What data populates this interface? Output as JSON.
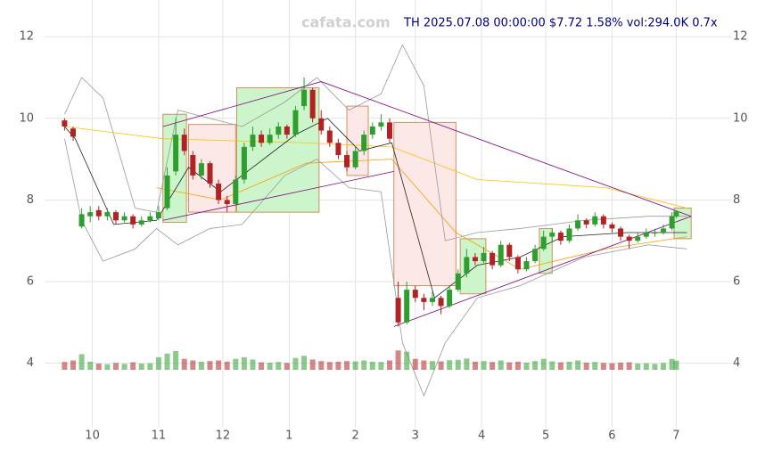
{
  "chart_data": {
    "type": "candlestick",
    "title": "TH 2025.07.08 00:00:00 $7.72 1.58% vol:294.0K 0.7x",
    "watermark": "cafata.com",
    "xlim": [
      -14,
      282
    ],
    "ylim": [
      2.2,
      12.9
    ],
    "xticks": [
      {
        "value": 0,
        "label": "10"
      },
      {
        "value": 31,
        "label": "11"
      },
      {
        "value": 61,
        "label": "12"
      },
      {
        "value": 92,
        "label": "1"
      },
      {
        "value": 123,
        "label": "2"
      },
      {
        "value": 151,
        "label": "3"
      },
      {
        "value": 182,
        "label": "4"
      },
      {
        "value": 212,
        "label": "5"
      },
      {
        "value": 243,
        "label": "6"
      },
      {
        "value": 273,
        "label": "7"
      }
    ],
    "yticks": [
      4,
      6,
      8,
      10,
      12
    ],
    "grid": true,
    "up_color": "#2e9e2e",
    "down_color": "#b22222",
    "x": [
      -13,
      -9,
      -5,
      -1,
      3,
      7,
      11,
      15,
      19,
      23,
      27,
      31,
      35,
      39,
      43,
      47,
      51,
      55,
      59,
      63,
      67,
      71,
      75,
      79,
      83,
      87,
      91,
      95,
      99,
      103,
      107,
      111,
      115,
      119,
      123,
      127,
      131,
      135,
      139,
      143,
      147,
      151,
      155,
      159,
      163,
      167,
      171,
      175,
      179,
      183,
      187,
      191,
      195,
      199,
      203,
      207,
      211,
      215,
      219,
      223,
      227,
      231,
      235,
      239,
      243,
      247,
      251,
      255,
      259,
      263,
      267,
      271,
      273
    ],
    "open": [
      9.95,
      9.75,
      7.35,
      7.6,
      7.75,
      7.6,
      7.7,
      7.5,
      7.6,
      7.4,
      7.5,
      7.55,
      7.8,
      8.7,
      9.6,
      9.1,
      8.6,
      8.9,
      8.4,
      8.0,
      7.9,
      8.5,
      9.3,
      9.6,
      9.4,
      9.6,
      9.8,
      9.6,
      10.3,
      10.7,
      10.0,
      9.7,
      9.4,
      9.1,
      8.8,
      9.2,
      9.6,
      9.8,
      9.9,
      5.6,
      5.0,
      5.8,
      5.6,
      5.5,
      5.6,
      5.4,
      5.8,
      6.2,
      6.6,
      6.5,
      6.7,
      6.4,
      6.9,
      6.6,
      6.3,
      6.5,
      6.8,
      7.1,
      7.2,
      7.0,
      7.3,
      7.5,
      7.4,
      7.6,
      7.4,
      7.3,
      7.1,
      7.0,
      7.1,
      7.2,
      7.2,
      7.3,
      7.6
    ],
    "high": [
      10.0,
      9.8,
      7.8,
      7.85,
      7.85,
      7.8,
      7.75,
      7.7,
      7.65,
      7.6,
      7.7,
      7.85,
      8.8,
      10.0,
      9.75,
      9.2,
      9.0,
      8.95,
      8.5,
      8.1,
      8.6,
      9.4,
      9.8,
      9.7,
      9.75,
      9.9,
      9.85,
      10.3,
      11.0,
      10.75,
      10.2,
      9.8,
      9.5,
      9.2,
      9.3,
      9.7,
      9.9,
      10.1,
      10.0,
      6.0,
      6.0,
      5.9,
      5.7,
      5.75,
      5.65,
      5.9,
      6.3,
      6.8,
      6.7,
      6.85,
      6.75,
      7.0,
      6.95,
      6.65,
      6.6,
      6.9,
      7.25,
      7.3,
      7.25,
      7.4,
      7.65,
      7.55,
      7.7,
      7.65,
      7.45,
      7.35,
      7.15,
      7.2,
      7.3,
      7.3,
      7.4,
      7.7,
      7.75
    ],
    "low": [
      9.7,
      9.45,
      7.3,
      7.45,
      7.5,
      7.5,
      7.4,
      7.45,
      7.3,
      7.35,
      7.45,
      7.5,
      7.75,
      8.6,
      9.1,
      8.5,
      8.5,
      8.3,
      7.9,
      7.7,
      7.85,
      8.4,
      9.2,
      9.3,
      9.35,
      9.5,
      9.5,
      9.55,
      10.2,
      9.9,
      9.6,
      9.3,
      9.0,
      8.7,
      8.75,
      9.1,
      9.5,
      9.7,
      9.4,
      4.9,
      4.95,
      5.5,
      5.3,
      5.4,
      5.2,
      5.35,
      5.75,
      6.1,
      6.4,
      6.45,
      6.3,
      6.35,
      6.5,
      6.2,
      6.25,
      6.45,
      6.75,
      7.0,
      6.9,
      6.95,
      7.25,
      7.3,
      7.35,
      7.3,
      7.2,
      7.0,
      6.8,
      6.95,
      7.05,
      7.1,
      7.15,
      7.25,
      7.55
    ],
    "close": [
      9.8,
      9.55,
      7.65,
      7.7,
      7.6,
      7.7,
      7.5,
      7.6,
      7.4,
      7.5,
      7.6,
      7.7,
      8.6,
      9.6,
      9.2,
      8.6,
      8.9,
      8.4,
      8.0,
      7.9,
      8.5,
      9.3,
      9.6,
      9.4,
      9.6,
      9.8,
      9.6,
      10.2,
      10.7,
      10.0,
      9.7,
      9.4,
      9.1,
      8.8,
      9.2,
      9.6,
      9.8,
      9.9,
      9.5,
      5.0,
      5.8,
      5.6,
      5.5,
      5.6,
      5.4,
      5.8,
      6.2,
      6.6,
      6.5,
      6.7,
      6.4,
      6.9,
      6.6,
      6.3,
      6.5,
      6.8,
      7.1,
      7.2,
      7.0,
      7.3,
      7.5,
      7.4,
      7.6,
      7.4,
      7.3,
      7.1,
      7.0,
      7.1,
      7.2,
      7.2,
      7.3,
      7.6,
      7.72
    ],
    "volume": [
      250,
      300,
      500,
      260,
      200,
      180,
      220,
      190,
      240,
      200,
      210,
      400,
      520,
      600,
      350,
      300,
      260,
      280,
      300,
      260,
      350,
      400,
      330,
      240,
      230,
      250,
      220,
      380,
      450,
      330,
      280,
      250,
      260,
      280,
      270,
      300,
      260,
      250,
      300,
      620,
      580,
      350,
      300,
      280,
      270,
      310,
      320,
      360,
      260,
      280,
      250,
      300,
      240,
      260,
      230,
      280,
      350,
      270,
      240,
      260,
      300,
      230,
      250,
      220,
      210,
      230,
      240,
      200,
      210,
      190,
      220,
      350,
      294
    ],
    "boxes": [
      {
        "x0": 33,
        "x1": 44,
        "low": 7.45,
        "high": 10.1,
        "color": "#ccf5cc"
      },
      {
        "x0": 45,
        "x1": 67,
        "low": 7.7,
        "high": 9.85,
        "color": "#fde8e8"
      },
      {
        "x0": 67.5,
        "x1": 106,
        "low": 7.7,
        "high": 10.75,
        "color": "#ccf5cc"
      },
      {
        "x0": 119,
        "x1": 129,
        "low": 8.6,
        "high": 10.3,
        "color": "#fde8e8"
      },
      {
        "x0": 141,
        "x1": 170,
        "low": 5.9,
        "high": 9.9,
        "color": "#fde8e8"
      },
      {
        "x0": 172,
        "x1": 184,
        "low": 5.7,
        "high": 7.05,
        "color": "#ccf5cc"
      },
      {
        "x0": 209,
        "x1": 215,
        "low": 6.2,
        "high": 7.3,
        "color": "#ccf5cc"
      },
      {
        "x0": 272,
        "x1": 280,
        "low": 7.05,
        "high": 7.8,
        "color": "#ccf5cc"
      }
    ],
    "lines": [
      {
        "color": "#ffc000",
        "x": [
          -13,
          33,
          100,
          140,
          180,
          240,
          278
        ],
        "values": [
          9.8,
          9.5,
          9.4,
          9.3,
          8.5,
          8.3,
          7.8
        ]
      },
      {
        "color": "#ff9900",
        "x": [
          30,
          60,
          100,
          140,
          170,
          200,
          240,
          278
        ],
        "values": [
          8.3,
          8.0,
          8.9,
          9.0,
          7.2,
          6.3,
          6.8,
          7.1
        ]
      },
      {
        "color": "#222222",
        "x": [
          -13,
          -8,
          10,
          30,
          45,
          60,
          75,
          95,
          110,
          125,
          140,
          160,
          180,
          200,
          220,
          250,
          278
        ],
        "values": [
          9.8,
          9.5,
          7.4,
          7.5,
          8.8,
          8.2,
          8.8,
          9.6,
          10.0,
          9.2,
          9.4,
          5.6,
          6.4,
          6.6,
          7.1,
          7.2,
          7.2
        ]
      },
      {
        "color": "#999999",
        "x": [
          -13,
          -5,
          5,
          20,
          30,
          40,
          55,
          70,
          90,
          105,
          120,
          135,
          145,
          155,
          165,
          180,
          200,
          230,
          260,
          278
        ],
        "values": [
          10.1,
          11.0,
          10.5,
          7.8,
          7.7,
          10.2,
          10.0,
          9.8,
          10.4,
          11.0,
          10.2,
          10.6,
          11.8,
          10.8,
          7.0,
          7.2,
          7.3,
          7.5,
          7.6,
          7.6
        ]
      },
      {
        "color": "#999999",
        "x": [
          -13,
          -5,
          5,
          20,
          30,
          40,
          55,
          70,
          90,
          105,
          120,
          135,
          145,
          155,
          165,
          180,
          200,
          230,
          260,
          278
        ],
        "values": [
          9.5,
          7.5,
          6.5,
          6.8,
          7.3,
          6.9,
          7.3,
          7.4,
          8.6,
          9.0,
          8.3,
          8.2,
          4.5,
          3.2,
          4.5,
          5.6,
          5.9,
          6.6,
          6.9,
          6.8
        ]
      },
      {
        "color": "#800080",
        "x": [
          33,
          107,
          280
        ],
        "values": [
          9.8,
          10.9,
          7.6
        ]
      },
      {
        "color": "#800080",
        "x": [
          141,
          280
        ],
        "values": [
          4.9,
          7.6
        ]
      },
      {
        "color": "#800080",
        "x": [
          33,
          141
        ],
        "values": [
          7.5,
          8.7
        ]
      }
    ]
  }
}
